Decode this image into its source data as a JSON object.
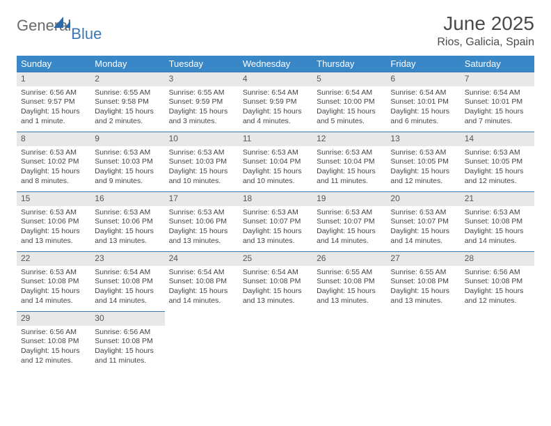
{
  "logo": {
    "general": "General",
    "blue": "Blue",
    "shape_color": "#2f6aa8"
  },
  "title": "June 2025",
  "location": "Rios, Galicia, Spain",
  "header_bg": "#3a87c8",
  "daynum_bg": "#e8e8e8",
  "daynum_border": "#3a78b5",
  "text_color": "#444444",
  "font_family": "Arial, Helvetica, sans-serif",
  "title_fontsize": 28,
  "location_fontsize": 16,
  "header_fontsize": 13,
  "cell_fontsize": 10.5,
  "weekdays": [
    "Sunday",
    "Monday",
    "Tuesday",
    "Wednesday",
    "Thursday",
    "Friday",
    "Saturday"
  ],
  "days": [
    {
      "n": 1,
      "sunrise": "6:56 AM",
      "sunset": "9:57 PM",
      "daylight": "15 hours and 1 minute."
    },
    {
      "n": 2,
      "sunrise": "6:55 AM",
      "sunset": "9:58 PM",
      "daylight": "15 hours and 2 minutes."
    },
    {
      "n": 3,
      "sunrise": "6:55 AM",
      "sunset": "9:59 PM",
      "daylight": "15 hours and 3 minutes."
    },
    {
      "n": 4,
      "sunrise": "6:54 AM",
      "sunset": "9:59 PM",
      "daylight": "15 hours and 4 minutes."
    },
    {
      "n": 5,
      "sunrise": "6:54 AM",
      "sunset": "10:00 PM",
      "daylight": "15 hours and 5 minutes."
    },
    {
      "n": 6,
      "sunrise": "6:54 AM",
      "sunset": "10:01 PM",
      "daylight": "15 hours and 6 minutes."
    },
    {
      "n": 7,
      "sunrise": "6:54 AM",
      "sunset": "10:01 PM",
      "daylight": "15 hours and 7 minutes."
    },
    {
      "n": 8,
      "sunrise": "6:53 AM",
      "sunset": "10:02 PM",
      "daylight": "15 hours and 8 minutes."
    },
    {
      "n": 9,
      "sunrise": "6:53 AM",
      "sunset": "10:03 PM",
      "daylight": "15 hours and 9 minutes."
    },
    {
      "n": 10,
      "sunrise": "6:53 AM",
      "sunset": "10:03 PM",
      "daylight": "15 hours and 10 minutes."
    },
    {
      "n": 11,
      "sunrise": "6:53 AM",
      "sunset": "10:04 PM",
      "daylight": "15 hours and 10 minutes."
    },
    {
      "n": 12,
      "sunrise": "6:53 AM",
      "sunset": "10:04 PM",
      "daylight": "15 hours and 11 minutes."
    },
    {
      "n": 13,
      "sunrise": "6:53 AM",
      "sunset": "10:05 PM",
      "daylight": "15 hours and 12 minutes."
    },
    {
      "n": 14,
      "sunrise": "6:53 AM",
      "sunset": "10:05 PM",
      "daylight": "15 hours and 12 minutes."
    },
    {
      "n": 15,
      "sunrise": "6:53 AM",
      "sunset": "10:06 PM",
      "daylight": "15 hours and 13 minutes."
    },
    {
      "n": 16,
      "sunrise": "6:53 AM",
      "sunset": "10:06 PM",
      "daylight": "15 hours and 13 minutes."
    },
    {
      "n": 17,
      "sunrise": "6:53 AM",
      "sunset": "10:06 PM",
      "daylight": "15 hours and 13 minutes."
    },
    {
      "n": 18,
      "sunrise": "6:53 AM",
      "sunset": "10:07 PM",
      "daylight": "15 hours and 13 minutes."
    },
    {
      "n": 19,
      "sunrise": "6:53 AM",
      "sunset": "10:07 PM",
      "daylight": "15 hours and 14 minutes."
    },
    {
      "n": 20,
      "sunrise": "6:53 AM",
      "sunset": "10:07 PM",
      "daylight": "15 hours and 14 minutes."
    },
    {
      "n": 21,
      "sunrise": "6:53 AM",
      "sunset": "10:08 PM",
      "daylight": "15 hours and 14 minutes."
    },
    {
      "n": 22,
      "sunrise": "6:53 AM",
      "sunset": "10:08 PM",
      "daylight": "15 hours and 14 minutes."
    },
    {
      "n": 23,
      "sunrise": "6:54 AM",
      "sunset": "10:08 PM",
      "daylight": "15 hours and 14 minutes."
    },
    {
      "n": 24,
      "sunrise": "6:54 AM",
      "sunset": "10:08 PM",
      "daylight": "15 hours and 14 minutes."
    },
    {
      "n": 25,
      "sunrise": "6:54 AM",
      "sunset": "10:08 PM",
      "daylight": "15 hours and 13 minutes."
    },
    {
      "n": 26,
      "sunrise": "6:55 AM",
      "sunset": "10:08 PM",
      "daylight": "15 hours and 13 minutes."
    },
    {
      "n": 27,
      "sunrise": "6:55 AM",
      "sunset": "10:08 PM",
      "daylight": "15 hours and 13 minutes."
    },
    {
      "n": 28,
      "sunrise": "6:56 AM",
      "sunset": "10:08 PM",
      "daylight": "15 hours and 12 minutes."
    },
    {
      "n": 29,
      "sunrise": "6:56 AM",
      "sunset": "10:08 PM",
      "daylight": "15 hours and 12 minutes."
    },
    {
      "n": 30,
      "sunrise": "6:56 AM",
      "sunset": "10:08 PM",
      "daylight": "15 hours and 11 minutes."
    }
  ],
  "labels": {
    "sunrise": "Sunrise:",
    "sunset": "Sunset:",
    "daylight": "Daylight:"
  },
  "first_weekday_index": 0,
  "columns": 7,
  "rows": 5
}
